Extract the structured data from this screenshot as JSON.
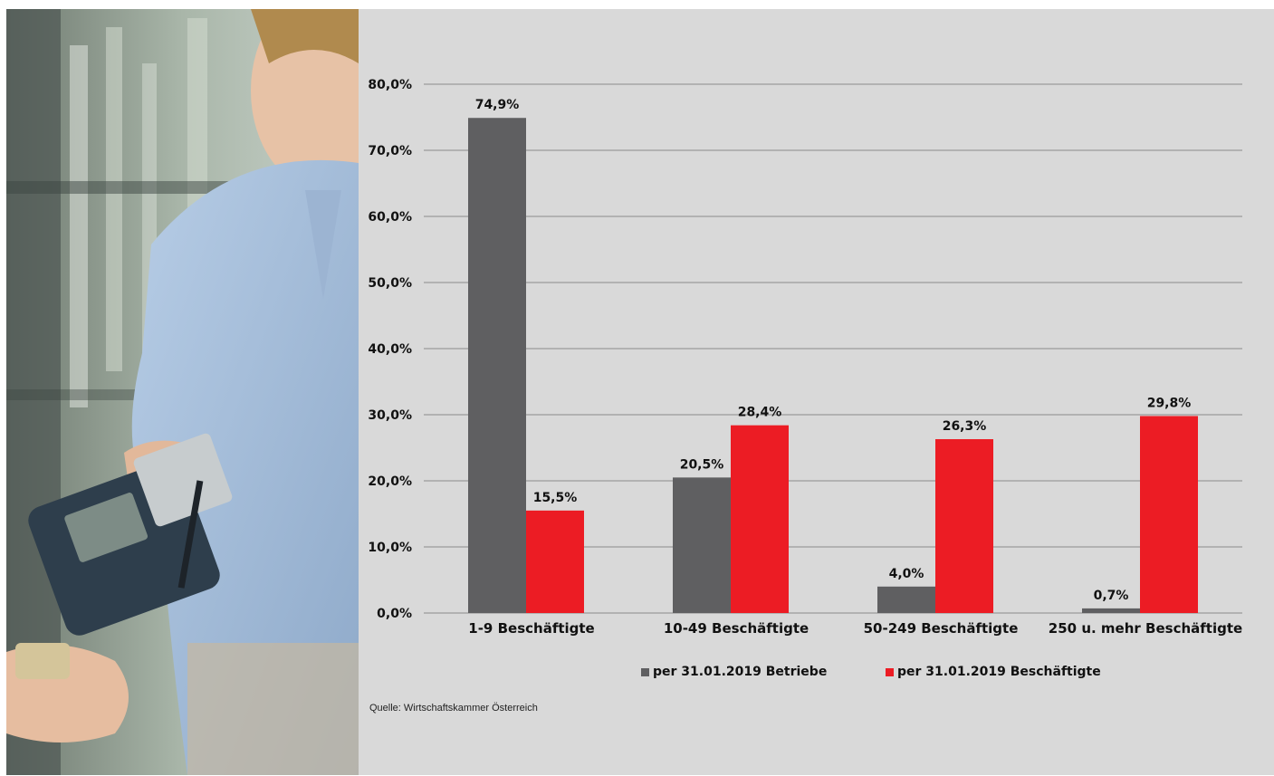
{
  "source": "Quelle: Wirtschaftskammer Österreich",
  "colors": {
    "betriebe": "#5f5f61",
    "beschaeftigte": "#ec1c24",
    "panel_bg": "#d9d9d9",
    "grid": "#8c8c8c"
  },
  "photo": {
    "icon": "person-with-barcode-scanner-photo"
  },
  "chart_data": {
    "type": "bar",
    "categories": [
      "1-9 Beschäftigte",
      "10-49 Beschäftigte",
      "50-249 Beschäftigte",
      "250 u. mehr Beschäftigte"
    ],
    "series": [
      {
        "name": "per 31.01.2019 Betriebe",
        "values": [
          74.9,
          20.5,
          4.0,
          0.7
        ],
        "labels": [
          "74,9%",
          "20,5%",
          "4,0%",
          "0,7%"
        ]
      },
      {
        "name": "per 31.01.2019 Beschäftigte",
        "values": [
          15.5,
          28.4,
          26.3,
          29.8
        ],
        "labels": [
          "15,5%",
          "28,4%",
          "26,3%",
          "29,8%"
        ]
      }
    ],
    "yticks": [
      0,
      10,
      20,
      30,
      40,
      50,
      60,
      70,
      80
    ],
    "ytick_labels": [
      "0,0%",
      "10,0%",
      "20,0%",
      "30,0%",
      "40,0%",
      "50,0%",
      "60,0%",
      "70,0%",
      "80,0%"
    ],
    "ylim": [
      0,
      80
    ],
    "grid": true,
    "legend_position": "bottom"
  }
}
